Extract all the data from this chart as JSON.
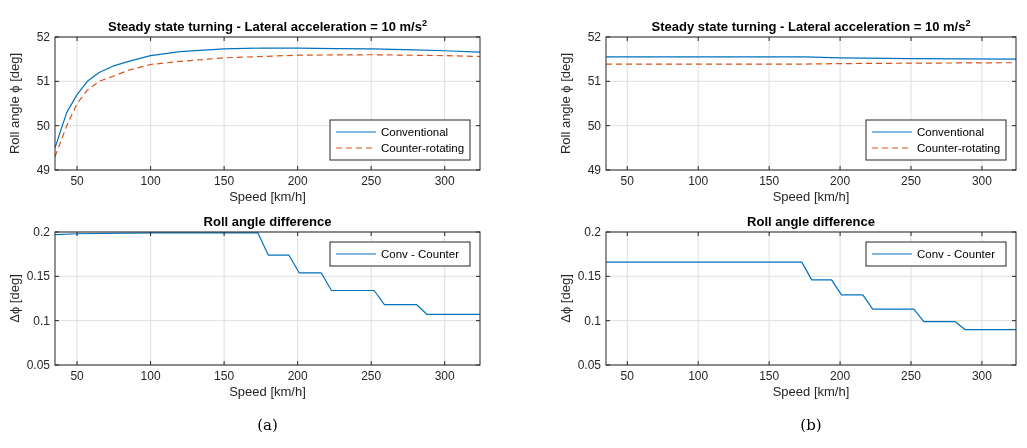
{
  "chart_data": [
    {
      "type": "line",
      "title": "Steady state turning - Lateral acceleration = 10 m/s$^{2}$",
      "xlabel": "Speed [km/h]",
      "ylabel": "Roll angle ϕ [deg]",
      "xlim": [
        35,
        324
      ],
      "ylim": [
        49,
        52
      ],
      "xticks": [
        50,
        100,
        150,
        200,
        250,
        300
      ],
      "yticks": [
        49,
        50,
        51,
        52
      ],
      "grid": true,
      "legend": "bottom right",
      "series": [
        {
          "name": "Conventional",
          "color": "#0072bd",
          "line_style": "solid",
          "x": [
            35,
            43,
            50,
            57,
            65,
            75,
            85,
            100,
            120,
            150,
            175,
            200,
            225,
            250,
            280,
            300,
            324
          ],
          "values": [
            49.5,
            50.3,
            50.7,
            51.0,
            51.2,
            51.35,
            51.45,
            51.58,
            51.67,
            51.73,
            51.75,
            51.75,
            51.74,
            51.73,
            51.71,
            51.69,
            51.66
          ]
        },
        {
          "name": "Counter-rotating",
          "color": "#d95319",
          "line_style": "dashed",
          "x": [
            35,
            43,
            50,
            57,
            65,
            75,
            85,
            100,
            120,
            150,
            175,
            200,
            250,
            300,
            324
          ],
          "values": [
            49.3,
            50.0,
            50.5,
            50.8,
            51.0,
            51.12,
            51.25,
            51.38,
            51.45,
            51.53,
            51.56,
            51.59,
            51.6,
            51.58,
            51.56
          ]
        }
      ]
    },
    {
      "type": "line",
      "title": "Roll angle difference",
      "xlabel": "Speed [km/h]",
      "ylabel": "Δϕ [deg]",
      "xlim": [
        35,
        324
      ],
      "ylim": [
        0.05,
        0.2
      ],
      "xticks": [
        50,
        100,
        150,
        200,
        250,
        300
      ],
      "yticks": [
        0.05,
        0.1,
        0.15,
        0.2
      ],
      "grid": true,
      "legend": "top right",
      "annotations": [
        "(a)"
      ],
      "series": [
        {
          "name": "Conv - Counter",
          "color": "#0072bd",
          "line_style": "solid",
          "x": [
            35,
            50,
            100,
            173,
            180,
            194,
            201,
            216,
            223,
            252,
            259,
            281,
            288,
            324
          ],
          "values": [
            0.197,
            0.198,
            0.199,
            0.199,
            0.174,
            0.174,
            0.154,
            0.154,
            0.134,
            0.134,
            0.118,
            0.118,
            0.107,
            0.107
          ]
        }
      ]
    },
    {
      "type": "line",
      "title": "Steady state turning - Lateral acceleration = 10 m/s$^{2}$",
      "xlabel": "Speed [km/h]",
      "ylabel": "Roll angle ϕ [deg]",
      "xlim": [
        35,
        324
      ],
      "ylim": [
        49,
        52
      ],
      "xticks": [
        50,
        100,
        150,
        200,
        250,
        300
      ],
      "yticks": [
        49,
        50,
        51,
        52
      ],
      "grid": true,
      "legend": "bottom right",
      "series": [
        {
          "name": "Conventional",
          "color": "#0072bd",
          "line_style": "solid",
          "x": [
            35,
            100,
            175,
            200,
            250,
            324
          ],
          "values": [
            51.55,
            51.55,
            51.55,
            51.53,
            51.51,
            51.5
          ]
        },
        {
          "name": "Counter-rotating",
          "color": "#d95319",
          "line_style": "dashed",
          "x": [
            35,
            100,
            175,
            200,
            250,
            324
          ],
          "values": [
            51.39,
            51.39,
            51.39,
            51.4,
            51.41,
            51.42
          ]
        }
      ]
    },
    {
      "type": "line",
      "title": "Roll angle difference",
      "xlabel": "Speed [km/h]",
      "ylabel": "Δϕ [deg]",
      "xlim": [
        35,
        324
      ],
      "ylim": [
        0.05,
        0.2
      ],
      "xticks": [
        50,
        100,
        150,
        200,
        250,
        300
      ],
      "yticks": [
        0.05,
        0.1,
        0.15,
        0.2
      ],
      "grid": true,
      "legend": "top right",
      "annotations": [
        "(b)"
      ],
      "series": [
        {
          "name": "Conv - Counter",
          "color": "#0072bd",
          "line_style": "solid",
          "x": [
            35,
            100,
            173,
            180,
            194,
            201,
            216,
            223,
            252,
            259,
            281,
            288,
            324
          ],
          "values": [
            0.166,
            0.166,
            0.166,
            0.146,
            0.146,
            0.129,
            0.129,
            0.113,
            0.113,
            0.099,
            0.099,
            0.09,
            0.09
          ]
        }
      ]
    }
  ]
}
